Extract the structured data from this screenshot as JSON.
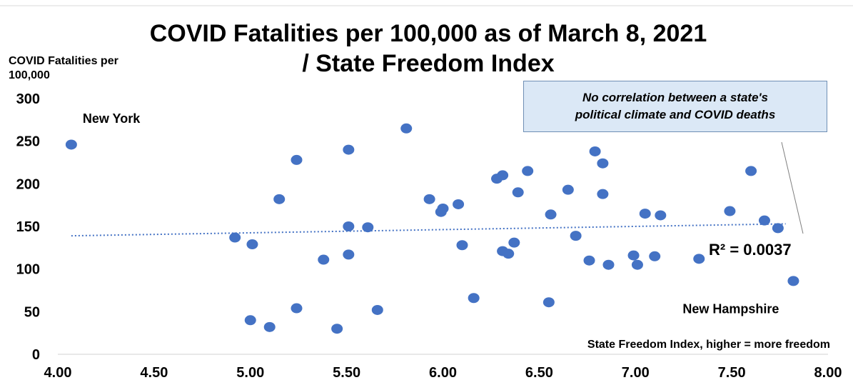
{
  "chart_data": {
    "type": "scatter",
    "title": "COVID Fatalities per 100,000 as of March 8, 2021",
    "subtitle": "/ State Freedom Index",
    "xlabel": "State Freedom Index, higher = more freedom",
    "ylabel": "COVID Fatalities per 100,000",
    "xlim": [
      4.0,
      8.0
    ],
    "ylim": [
      0,
      300
    ],
    "x_ticks": [
      "4.00",
      "4.50",
      "5.00",
      "5.50",
      "6.00",
      "6.50",
      "7.00",
      "7.50",
      "8.00"
    ],
    "y_ticks": [
      "0",
      "50",
      "100",
      "150",
      "200",
      "250",
      "300"
    ],
    "grid": false,
    "point_color": "#4472c4",
    "trendline": {
      "style": "dotted",
      "color": "#4472c4",
      "start": [
        4.07,
        139
      ],
      "end": [
        7.78,
        153
      ],
      "r_squared_label": "R² = 0.0037"
    },
    "annotation_box": {
      "line1": "No correlation between a state's",
      "line2": "political climate and COVID deaths"
    },
    "labeled_points": [
      {
        "name": "New York",
        "x": 4.07,
        "y": 246
      },
      {
        "name": "New Hampshire",
        "x": 7.82,
        "y": 86
      }
    ],
    "points": [
      {
        "x": 4.07,
        "y": 246
      },
      {
        "x": 4.92,
        "y": 137
      },
      {
        "x": 5.01,
        "y": 129
      },
      {
        "x": 5.0,
        "y": 40
      },
      {
        "x": 5.1,
        "y": 32
      },
      {
        "x": 5.15,
        "y": 182
      },
      {
        "x": 5.24,
        "y": 228
      },
      {
        "x": 5.24,
        "y": 54
      },
      {
        "x": 5.38,
        "y": 111
      },
      {
        "x": 5.45,
        "y": 30
      },
      {
        "x": 5.51,
        "y": 240
      },
      {
        "x": 5.51,
        "y": 150
      },
      {
        "x": 5.51,
        "y": 117
      },
      {
        "x": 5.61,
        "y": 149
      },
      {
        "x": 5.66,
        "y": 52
      },
      {
        "x": 5.81,
        "y": 265
      },
      {
        "x": 5.93,
        "y": 182
      },
      {
        "x": 5.99,
        "y": 167
      },
      {
        "x": 6.0,
        "y": 171
      },
      {
        "x": 6.08,
        "y": 176
      },
      {
        "x": 6.1,
        "y": 128
      },
      {
        "x": 6.16,
        "y": 66
      },
      {
        "x": 6.28,
        "y": 206
      },
      {
        "x": 6.31,
        "y": 210
      },
      {
        "x": 6.31,
        "y": 121
      },
      {
        "x": 6.34,
        "y": 118
      },
      {
        "x": 6.37,
        "y": 131
      },
      {
        "x": 6.39,
        "y": 190
      },
      {
        "x": 6.44,
        "y": 215
      },
      {
        "x": 6.55,
        "y": 61
      },
      {
        "x": 6.56,
        "y": 164
      },
      {
        "x": 6.65,
        "y": 193
      },
      {
        "x": 6.69,
        "y": 139
      },
      {
        "x": 6.76,
        "y": 110
      },
      {
        "x": 6.79,
        "y": 238
      },
      {
        "x": 6.83,
        "y": 224
      },
      {
        "x": 6.83,
        "y": 188
      },
      {
        "x": 6.86,
        "y": 105
      },
      {
        "x": 6.99,
        "y": 116
      },
      {
        "x": 7.01,
        "y": 105
      },
      {
        "x": 7.05,
        "y": 165
      },
      {
        "x": 7.1,
        "y": 115
      },
      {
        "x": 7.13,
        "y": 163
      },
      {
        "x": 7.33,
        "y": 112
      },
      {
        "x": 7.49,
        "y": 168
      },
      {
        "x": 7.6,
        "y": 215
      },
      {
        "x": 7.67,
        "y": 157
      },
      {
        "x": 7.74,
        "y": 148
      },
      {
        "x": 7.82,
        "y": 86
      }
    ]
  }
}
